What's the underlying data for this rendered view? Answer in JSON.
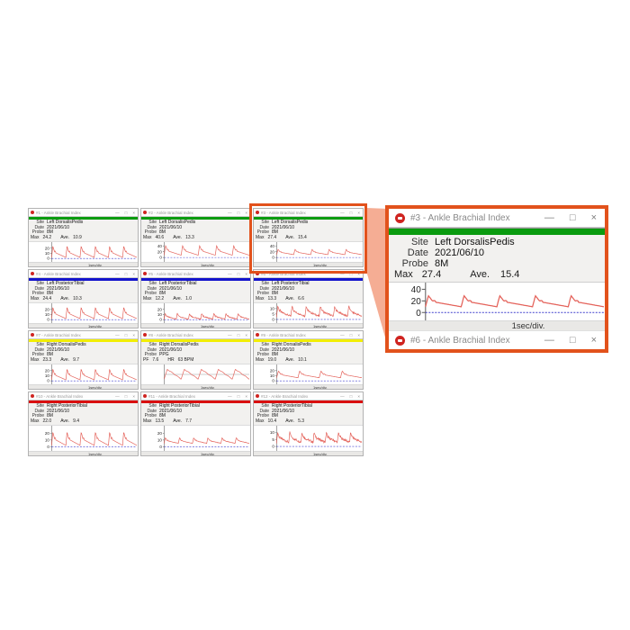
{
  "field_labels": {
    "site": "Site",
    "date": "Date",
    "probe": "Probe"
  },
  "window_controls": {
    "minimize": "—",
    "maximize": "□",
    "close": "×"
  },
  "strip_colors": {
    "green": "#0a9b0f",
    "blue": "#1414cc",
    "yellow": "#f2ee04",
    "red": "#d90f0f"
  },
  "accent": {
    "highlight_border": "#e2521c",
    "connector_fill": "#f5ad94",
    "waveform": "#e4625a",
    "baseline": "#2a2ac8"
  },
  "windows": [
    {
      "title": "#1 - Ankle Brachial Index",
      "strip": "green",
      "site": "Left DorsalisPedis",
      "date": "2021/06/10",
      "probe": "8M",
      "stat1_label": "Max",
      "stat1_value": "24.2",
      "stat2_label": "Ave.",
      "stat2_value": "10.9",
      "xlabel": "1sec/div.",
      "chart": {
        "yticks": [
          20,
          10,
          0
        ],
        "ymin": -5,
        "ymax": 30,
        "pulses": 6,
        "peak": 24,
        "base": 2,
        "noise": 0,
        "bipolar": false
      }
    },
    {
      "title": "#2 - Ankle Brachial Index",
      "strip": "green",
      "site": "Left DorsalisPedis",
      "date": "2021/06/10",
      "probe": "8M",
      "stat1_label": "Max",
      "stat1_value": "40.6",
      "stat2_label": "Ave.",
      "stat2_value": "13.3",
      "xlabel": "1sec/div.",
      "chart": {
        "yticks": [
          40,
          20,
          0
        ],
        "ymin": -12,
        "ymax": 50,
        "pulses": 5,
        "peak": 41,
        "base": 8,
        "noise": 0,
        "bipolar": false
      }
    },
    {
      "title": "#3 - Ankle Brachial Index",
      "strip": "green",
      "site": "Left DorsalisPedis",
      "date": "2021/06/10",
      "probe": "8M",
      "stat1_label": "Max",
      "stat1_value": "27.4",
      "stat2_label": "Ave.",
      "stat2_value": "15.4",
      "xlabel": "1sec/div.",
      "chart": {
        "yticks": [
          40,
          20,
          0
        ],
        "ymin": -12,
        "ymax": 50,
        "pulses": 5,
        "peak": 28,
        "base": 10,
        "noise": 0,
        "bipolar": false
      }
    },
    {
      "title": "#4 - Ankle Brachial Index",
      "strip": "blue",
      "site": "Left PosteriorTibial",
      "date": "2021/06/10",
      "probe": "8M",
      "stat1_label": "Max",
      "stat1_value": "24.4",
      "stat2_label": "Ave.",
      "stat2_value": "10.3",
      "xlabel": "1sec/div.",
      "chart": {
        "yticks": [
          20,
          10,
          0
        ],
        "ymin": -5,
        "ymax": 30,
        "pulses": 6,
        "peak": 24,
        "base": 2,
        "noise": 0,
        "bipolar": false
      }
    },
    {
      "title": "#5 - Ankle Brachial Index",
      "strip": "blue",
      "site": "Left PosteriorTibial",
      "date": "2021/06/10",
      "probe": "8M",
      "stat1_label": "Max",
      "stat1_value": "12.2",
      "stat2_label": "Ave.",
      "stat2_value": "1.0",
      "xlabel": "1sec/div.",
      "chart": {
        "yticks": [
          20,
          10,
          0
        ],
        "ymin": -5,
        "ymax": 30,
        "pulses": 7,
        "peak": 12,
        "base": 1,
        "noise": 0.9,
        "bipolar": false
      }
    },
    {
      "title": "#6 - Ankle Brachial Index",
      "strip": "blue",
      "site": "Left PosteriorTibial",
      "date": "2021/06/10",
      "probe": "8M",
      "stat1_label": "Max",
      "stat1_value": "13.3",
      "stat2_label": "Ave.",
      "stat2_value": "6.6",
      "xlabel": "1sec/div.",
      "chart": {
        "yticks": [
          10,
          5,
          0
        ],
        "ymin": -2.5,
        "ymax": 14,
        "pulses": 6,
        "peak": 12.5,
        "base": 3,
        "noise": 0.8,
        "bipolar": false
      }
    },
    {
      "title": "#7 - Ankle Brachial Index",
      "strip": "yellow",
      "site": "Right DorsalisPedis",
      "date": "2021/06/10",
      "probe": "8M",
      "stat1_label": "Max",
      "stat1_value": "23.3",
      "stat2_label": "Ave.",
      "stat2_value": "9.7",
      "xlabel": "1sec/div.",
      "chart": {
        "yticks": [
          20,
          10,
          0
        ],
        "ymin": -5,
        "ymax": 30,
        "pulses": 6,
        "peak": 23,
        "base": 2,
        "noise": 0,
        "bipolar": false
      }
    },
    {
      "title": "#8 - Ankle Brachial Index",
      "strip": "yellow",
      "site": "Right DorsalisPedis",
      "date": "2021/06/10",
      "probe": "PPG",
      "stat1_label": "PF",
      "stat1_value": "7.6",
      "stat2_label": "HR",
      "stat2_value": "63 BPM",
      "xlabel": "1sec/div.",
      "chart": {
        "yticks": [],
        "ymin": -1,
        "ymax": 1,
        "pulses": 5,
        "peak": 1,
        "base": -1,
        "noise": 0,
        "bipolar": true
      }
    },
    {
      "title": "#9 - Ankle Brachial Index",
      "strip": "yellow",
      "site": "Right DorsalisPedis",
      "date": "2021/06/10",
      "probe": "8M",
      "stat1_label": "Max",
      "stat1_value": "19.0",
      "stat2_label": "Ave.",
      "stat2_value": "10.1",
      "xlabel": "1sec/div.",
      "chart": {
        "yticks": [
          20,
          10,
          0
        ],
        "ymin": -5,
        "ymax": 30,
        "pulses": 4,
        "peak": 19,
        "base": 6,
        "noise": 0,
        "bipolar": false
      }
    },
    {
      "title": "#10 - Ankle Brachial Index",
      "strip": "red",
      "site": "Right PosteriorTibial",
      "date": "2021/06/10",
      "probe": "8M",
      "stat1_label": "Max",
      "stat1_value": "22.0",
      "stat2_label": "Ave.",
      "stat2_value": "9.4",
      "xlabel": "1sec/div.",
      "chart": {
        "yticks": [
          20,
          10,
          0
        ],
        "ymin": -5,
        "ymax": 30,
        "pulses": 6,
        "peak": 22,
        "base": 2,
        "noise": 0,
        "bipolar": false
      }
    },
    {
      "title": "#11 - Ankle Brachial Index",
      "strip": "red",
      "site": "Right PosteriorTibial",
      "date": "2021/06/10",
      "probe": "8M",
      "stat1_label": "Max",
      "stat1_value": "13.5",
      "stat2_label": "Ave.",
      "stat2_value": "7.7",
      "xlabel": "1sec/div.",
      "chart": {
        "yticks": [
          20,
          10,
          0
        ],
        "ymin": -5,
        "ymax": 30,
        "pulses": 6,
        "peak": 13.5,
        "base": 5,
        "noise": 0.3,
        "bipolar": false
      }
    },
    {
      "title": "#12 - Ankle Brachial Index",
      "strip": "red",
      "site": "Right PosteriorTibial",
      "date": "2021/06/10",
      "probe": "8M",
      "stat1_label": "Max",
      "stat1_value": "10.4",
      "stat2_label": "Ave.",
      "stat2_value": "5.3",
      "xlabel": "1sec/div.",
      "chart": {
        "yticks": [
          10,
          5,
          0
        ],
        "ymin": -2.5,
        "ymax": 14,
        "pulses": 7,
        "peak": 10,
        "base": 3,
        "noise": 0.8,
        "bipolar": false
      }
    }
  ],
  "zoom_panel": {
    "window": {
      "title": "#3 - Ankle Brachial Index",
      "site": "Left DorsalisPedis",
      "date": "2021/06/10",
      "probe": "8M",
      "stat1_label": "Max",
      "stat1_value": "27.4",
      "stat2_label": "Ave.",
      "stat2_value": "15.4",
      "xlabel": "1sec/div.",
      "chart": {
        "yticks": [
          40,
          20,
          0
        ],
        "ymin": -12,
        "ymax": 50,
        "pulses": 5,
        "peak": 29,
        "base": 10,
        "noise": 0,
        "bipolar": false
      }
    },
    "next_window_title": "#6 - Ankle Brachial Index"
  }
}
